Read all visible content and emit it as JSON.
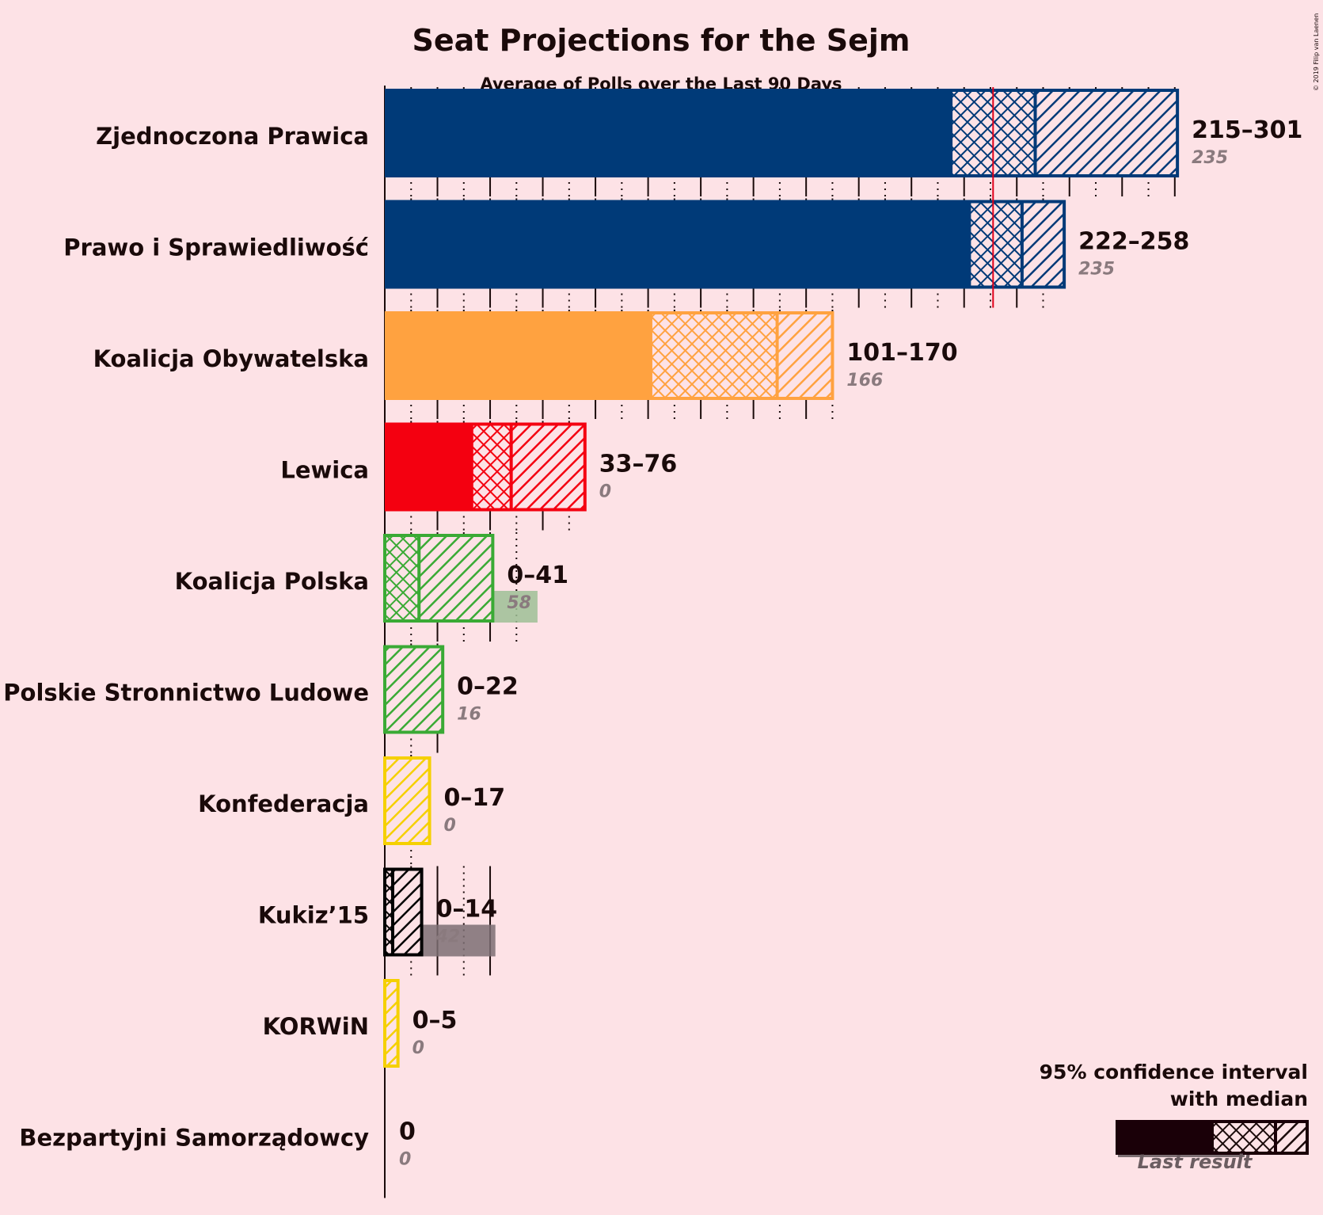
{
  "title": "Seat Projections for the Sejm",
  "subtitle": "Average of Polls over the Last 90 Days",
  "copyright": "© 2019 Filip van Laenen",
  "legend": {
    "line1": "95% confidence interval",
    "line2": "with median",
    "last_result": "Last result"
  },
  "majority_color": "#e0001a",
  "chart_data": {
    "type": "bar",
    "title": "Seat Projections for the Sejm",
    "subtitle": "Average of Polls over the Last 90 Days",
    "majority_line": 231,
    "xlim": [
      0,
      301
    ],
    "grid": "dotted tick marks every 10 seats, solid every 20",
    "parties": [
      {
        "name": "Zjednoczona Prawica",
        "low": 215,
        "median": 247,
        "high": 301,
        "last": 235,
        "range_label": "215–301",
        "last_label": "235",
        "color": "#003a78",
        "last_color": "#8a8aa3"
      },
      {
        "name": "Prawo i Sprawiedliwość",
        "low": 222,
        "median": 242,
        "high": 258,
        "last": 235,
        "range_label": "222–258",
        "last_label": "235",
        "color": "#003a78",
        "last_color": "#8a8aa3"
      },
      {
        "name": "Koalicja Obywatelska",
        "low": 101,
        "median": 149,
        "high": 170,
        "last": 166,
        "range_label": "101–170",
        "last_label": "166",
        "color": "#ffa240",
        "last_color": "#f8b98c"
      },
      {
        "name": "Lewica",
        "low": 33,
        "median": 48,
        "high": 76,
        "last": 0,
        "range_label": "33–76",
        "last_label": "0",
        "color": "#f40010",
        "last_color": "#f08a92"
      },
      {
        "name": "Koalicja Polska",
        "low": 0,
        "median": 13,
        "high": 41,
        "last": 58,
        "range_label": "0–41",
        "last_label": "58",
        "color": "#3aaa35",
        "last_color": "#9ebf95"
      },
      {
        "name": "Polskie Stronnictwo Ludowe",
        "low": 0,
        "median": 0,
        "high": 22,
        "last": 16,
        "range_label": "0–22",
        "last_label": "16",
        "color": "#3aaa35",
        "last_color": "#9ebf95"
      },
      {
        "name": "Konfederacja",
        "low": 0,
        "median": 0,
        "high": 17,
        "last": 0,
        "range_label": "0–17",
        "last_label": "0",
        "color": "#f5d000",
        "last_color": "#f0d870"
      },
      {
        "name": "Kukiz’15",
        "low": 0,
        "median": 3,
        "high": 14,
        "last": 42,
        "range_label": "0–14",
        "last_label": "42",
        "color": "#000000",
        "last_color": "#7d6f73"
      },
      {
        "name": "KORWiN",
        "low": 0,
        "median": 0,
        "high": 5,
        "last": 0,
        "range_label": "0–5",
        "last_label": "0",
        "color": "#f5d000",
        "last_color": "#f0d870"
      },
      {
        "name": "Bezpartyjni Samorządowcy",
        "low": 0,
        "median": 0,
        "high": 0,
        "last": 0,
        "range_label": "0",
        "last_label": "0",
        "color": "#777777",
        "last_color": "#9a8f92"
      }
    ]
  }
}
